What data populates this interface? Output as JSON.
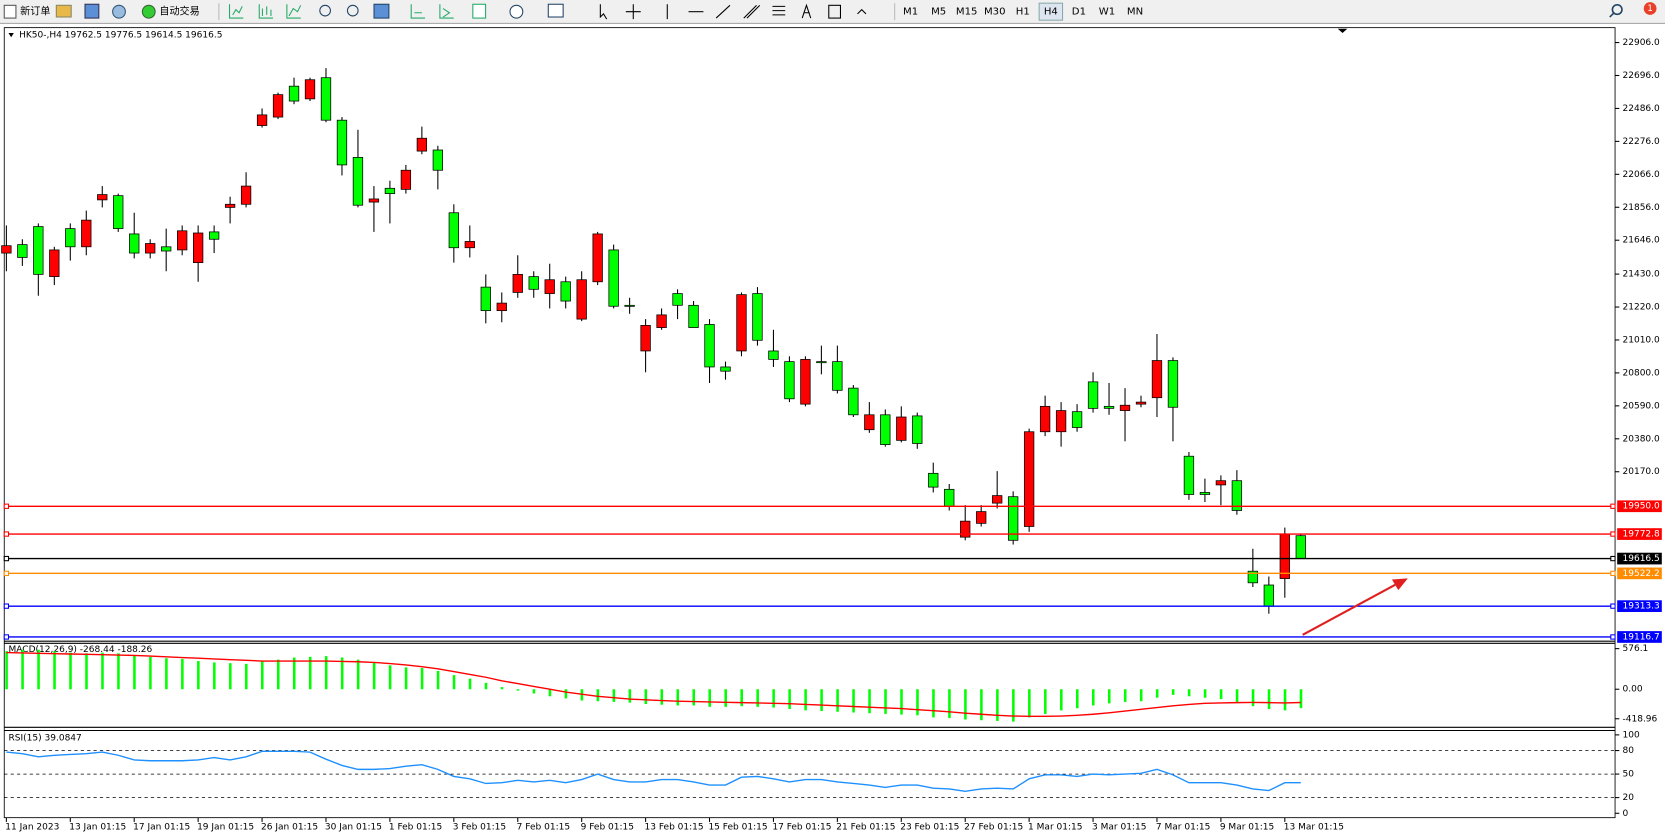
{
  "toolbar": {
    "new_order": "新订单",
    "auto_trading": "自动交易",
    "timeframes": [
      "M1",
      "M5",
      "M15",
      "M30",
      "H1",
      "H4",
      "D1",
      "W1",
      "MN"
    ],
    "notifications": 1
  },
  "chart_data": [
    {
      "type": "candlestick",
      "title": "HK50-,H4  19762.5 19776.5 19614.5 19616.5",
      "categories": [
        "11 Jan 2023",
        null,
        null,
        null,
        "13 Jan 01:15",
        null,
        null,
        null,
        "17 Jan 01:15",
        null,
        null,
        null,
        "19 Jan 01:15",
        null,
        null,
        null,
        "26 Jan 01:15",
        null,
        null,
        null,
        "30 Jan 01:15",
        null,
        null,
        null,
        "1 Feb 01:15",
        null,
        null,
        null,
        "3 Feb 01:15",
        null,
        null,
        null,
        "7 Feb 01:15",
        null,
        null,
        null,
        "9 Feb 01:15",
        null,
        null,
        null,
        "13 Feb 01:15",
        null,
        null,
        null,
        "15 Feb 01:15",
        null,
        null,
        null,
        "17 Feb 01:15",
        null,
        null,
        null,
        "21 Feb 01:15",
        null,
        null,
        null,
        "23 Feb 01:15",
        null,
        null,
        null,
        "27 Feb 01:15",
        null,
        null,
        null,
        "1 Mar 01:15",
        null,
        null,
        null,
        "3 Mar 01:15",
        null,
        null,
        null,
        "7 Mar 01:15",
        null,
        null,
        null,
        "9 Mar 01:15",
        null,
        null,
        null,
        "13 Mar 01:15",
        null
      ],
      "open": [
        21564,
        21618,
        21733,
        21414,
        21720,
        21604,
        21903,
        21930,
        21686,
        21564,
        21604,
        21584,
        21503,
        21699,
        21855,
        21875,
        22377,
        22431,
        22628,
        22547,
        22682,
        22411,
        22174,
        21889,
        21977,
        21970,
        22214,
        22221,
        21821,
        21598,
        21347,
        21197,
        21313,
        21414,
        21306,
        21381,
        21143,
        21381,
        21584,
        21231,
        20940,
        21089,
        21306,
        21231,
        21109,
        20838,
        20940,
        21306,
        20940,
        20872,
        20601,
        20872,
        20872,
        20703,
        20438,
        20533,
        20370,
        20526,
        20160,
        20058,
        19753,
        19841,
        19970,
        20011,
        19821,
        20425,
        20425,
        20553,
        20743,
        20587,
        20560,
        20601,
        20642,
        20879,
        20269,
        20038,
        20086,
        20113,
        19536,
        19448,
        19489,
        19762.5
      ],
      "high": [
        21740,
        21652,
        21753,
        21604,
        21753,
        21835,
        21991,
        21943,
        21821,
        21652,
        21720,
        21740,
        21740,
        21740,
        21923,
        22079,
        22486,
        22587,
        22682,
        22682,
        22743,
        22431,
        22350,
        21991,
        22025,
        22126,
        22370,
        22248,
        21875,
        21740,
        21428,
        21313,
        21550,
        21448,
        21496,
        21414,
        21448,
        21699,
        21618,
        21279,
        21143,
        21211,
        21333,
        21258,
        21143,
        20872,
        21313,
        21347,
        21075,
        20906,
        20906,
        20974,
        20974,
        20723,
        20614,
        20567,
        20587,
        20547,
        20228,
        20092,
        19957,
        19957,
        20174,
        20045,
        20445,
        20655,
        20614,
        20601,
        20804,
        20736,
        20703,
        20655,
        21048,
        20899,
        20296,
        20126,
        20147,
        20180,
        19679,
        19502,
        19814,
        19776.5
      ],
      "low": [
        21448,
        21482,
        21292,
        21360,
        21516,
        21550,
        21855,
        21699,
        21530,
        21530,
        21448,
        21550,
        21381,
        21564,
        21753,
        21855,
        22364,
        22418,
        22513,
        22533,
        22398,
        22059,
        21855,
        21699,
        21753,
        21943,
        22194,
        21970,
        21503,
        21536,
        21116,
        21123,
        21279,
        21279,
        21211,
        21211,
        21130,
        21360,
        21211,
        21177,
        20804,
        21075,
        21143,
        21089,
        20736,
        20757,
        20906,
        20974,
        20838,
        20614,
        20587,
        20791,
        20669,
        20519,
        20418,
        20330,
        20357,
        20316,
        20038,
        19923,
        19733,
        19821,
        19936,
        19706,
        19787,
        20397,
        20330,
        20425,
        20547,
        20533,
        20364,
        20581,
        20519,
        20364,
        19991,
        19977,
        19957,
        19896,
        19435,
        19265,
        19367,
        19614.5
      ],
      "close": [
        21611,
        21536,
        21428,
        21584,
        21604,
        21774,
        21937,
        21720,
        21564,
        21625,
        21577,
        21706,
        21692,
        21652,
        21875,
        21991,
        22445,
        22574,
        22533,
        22669,
        22411,
        22126,
        21869,
        21909,
        21943,
        22092,
        22296,
        22092,
        21598,
        21638,
        21197,
        21245,
        21428,
        21333,
        21394,
        21258,
        21394,
        21686,
        21225,
        21225,
        21103,
        21170,
        21231,
        21089,
        20838,
        20811,
        21299,
        21008,
        20886,
        20635,
        20886,
        20865,
        20689,
        20533,
        20533,
        20343,
        20519,
        20350,
        20072,
        19950,
        19855,
        19916,
        20018,
        19733,
        20425,
        20587,
        20560,
        20452,
        20574,
        20574,
        20594,
        20614,
        20879,
        20581,
        20025,
        20025,
        20113,
        19923,
        19462,
        19313,
        19774,
        19616.5
      ],
      "up_color": "#ff0000",
      "down_color": "#00ff00",
      "ylim": [
        19090,
        23001
      ],
      "yticks": [
        {
          "value": 22906,
          "label": "22906.0"
        },
        {
          "value": 22696,
          "label": "22696.0"
        },
        {
          "value": 22486,
          "label": "22486.0"
        },
        {
          "value": 22276,
          "label": "22276.0"
        },
        {
          "value": 22066,
          "label": "22066.0"
        },
        {
          "value": 21856,
          "label": "21856.0"
        },
        {
          "value": 21646,
          "label": "21646.0"
        },
        {
          "value": 21430,
          "label": "21430.0"
        },
        {
          "value": 21220,
          "label": "21220.0"
        },
        {
          "value": 21010,
          "label": "21010.0"
        },
        {
          "value": 20800,
          "label": "20800.0"
        },
        {
          "value": 20590,
          "label": "20590.0"
        },
        {
          "value": 20380,
          "label": "20380.0"
        },
        {
          "value": 20170,
          "label": "20170.0"
        }
      ],
      "levels": [
        {
          "value": 19950,
          "label": "19950.0",
          "color": "#ff0000"
        },
        {
          "value": 19772.8,
          "color": "#ff0000"
        },
        {
          "value": 19616.5,
          "color": "#000000"
        },
        {
          "value": 19522.2,
          "color": "#ff8c00"
        },
        {
          "value": 19313.3,
          "color": "#0000ff"
        },
        {
          "value": 19116.7,
          "color": "#0000ff"
        }
      ]
    },
    {
      "type": "macd",
      "title": "MACD(12,26,9) -268.44 -188.26",
      "histogram": [
        540,
        560,
        560,
        540,
        520,
        510,
        520,
        510,
        480,
        460,
        440,
        430,
        400,
        380,
        370,
        360,
        400,
        420,
        450,
        460,
        470,
        450,
        420,
        380,
        340,
        310,
        300,
        260,
        200,
        150,
        90,
        30,
        -20,
        -60,
        -100,
        -130,
        -160,
        -170,
        -180,
        -190,
        -210,
        -220,
        -230,
        -230,
        -250,
        -250,
        -240,
        -250,
        -260,
        -280,
        -300,
        -310,
        -320,
        -330,
        -340,
        -350,
        -360,
        -370,
        -400,
        -410,
        -430,
        -440,
        -450,
        -460,
        -400,
        -350,
        -300,
        -270,
        -230,
        -200,
        -180,
        -170,
        -120,
        -80,
        -100,
        -120,
        -140,
        -180,
        -240,
        -280,
        -300,
        -268.44
      ],
      "signal": [
        520,
        515,
        510,
        505,
        500,
        495,
        490,
        485,
        480,
        470,
        460,
        450,
        440,
        430,
        420,
        410,
        400,
        400,
        400,
        400,
        400,
        395,
        390,
        380,
        365,
        345,
        320,
        290,
        250,
        210,
        170,
        120,
        80,
        40,
        0,
        -40,
        -70,
        -100,
        -120,
        -140,
        -150,
        -160,
        -170,
        -175,
        -180,
        -185,
        -190,
        -195,
        -200,
        -205,
        -215,
        -225,
        -235,
        -245,
        -255,
        -265,
        -275,
        -290,
        -305,
        -320,
        -340,
        -355,
        -370,
        -380,
        -385,
        -385,
        -380,
        -370,
        -355,
        -335,
        -310,
        -285,
        -260,
        -235,
        -215,
        -200,
        -195,
        -190,
        -188,
        -190,
        -195,
        -188.26
      ],
      "histogram_color": "#00ff00",
      "signal_color": "#ff0000",
      "ylim": [
        -525,
        652
      ],
      "yticks": [
        576.1,
        {
          "value": 0,
          "label": "0.00"
        },
        -418.96
      ]
    },
    {
      "type": "line",
      "title": "RSI(15) 39.0847",
      "values": [
        78,
        76,
        72,
        74,
        75,
        76,
        78,
        74,
        68,
        67,
        67,
        67,
        68,
        71,
        68,
        72,
        79,
        79,
        79,
        78,
        69,
        61,
        56,
        56,
        57,
        60,
        62,
        56,
        47,
        44,
        38,
        39,
        42,
        40,
        42,
        39,
        43,
        50,
        43,
        40,
        40,
        43,
        43,
        40,
        36,
        36,
        46,
        47,
        44,
        40,
        43,
        43,
        40,
        38,
        36,
        33,
        36,
        36,
        32,
        31,
        28,
        31,
        32,
        31,
        44,
        49,
        49,
        47,
        50,
        49,
        50,
        51,
        56,
        49,
        39,
        39,
        39,
        36,
        31,
        29,
        39,
        39.0847
      ],
      "color": "#1e90ff",
      "ylim": [
        -5.6,
        105.6
      ],
      "yticks": [
        100,
        80,
        50,
        20,
        0
      ],
      "levels": [
        80,
        50,
        20
      ]
    }
  ]
}
